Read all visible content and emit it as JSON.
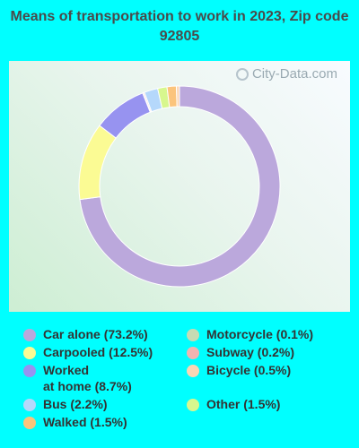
{
  "title": "Means of transportation to work in 2023, Zip code 92805",
  "watermark": "City-Data.com",
  "chart_data": {
    "type": "pie",
    "donut": true,
    "slices": [
      {
        "name": "Car alone",
        "label": "Car alone (73.2%)",
        "value": 73.2,
        "color": "#bba8dc"
      },
      {
        "name": "Carpooled",
        "label": "Carpooled (12.5%)",
        "value": 12.5,
        "color": "#fbfb94"
      },
      {
        "name": "Worked at home",
        "label": "Worked\nat home (8.7%)",
        "value": 8.7,
        "color": "#9793f0"
      },
      {
        "name": "Motorcycle",
        "label": "Motorcycle (0.1%)",
        "value": 0.1,
        "color": "#c6dbb3"
      },
      {
        "name": "Subway",
        "label": "Subway (0.2%)",
        "value": 0.2,
        "color": "#f1b4b0"
      },
      {
        "name": "Bicycle",
        "label": "Bicycle (0.5%)",
        "value": 0.5,
        "color": "#fbd6b4"
      },
      {
        "name": "Bus",
        "label": "Bus (2.2%)",
        "value": 2.2,
        "color": "#b5d8fb"
      },
      {
        "name": "Other",
        "label": "Other (1.5%)",
        "value": 1.5,
        "color": "#d7f78e"
      },
      {
        "name": "Walked",
        "label": "Walked (1.5%)",
        "value": 1.5,
        "color": "#fbc47c"
      }
    ]
  }
}
